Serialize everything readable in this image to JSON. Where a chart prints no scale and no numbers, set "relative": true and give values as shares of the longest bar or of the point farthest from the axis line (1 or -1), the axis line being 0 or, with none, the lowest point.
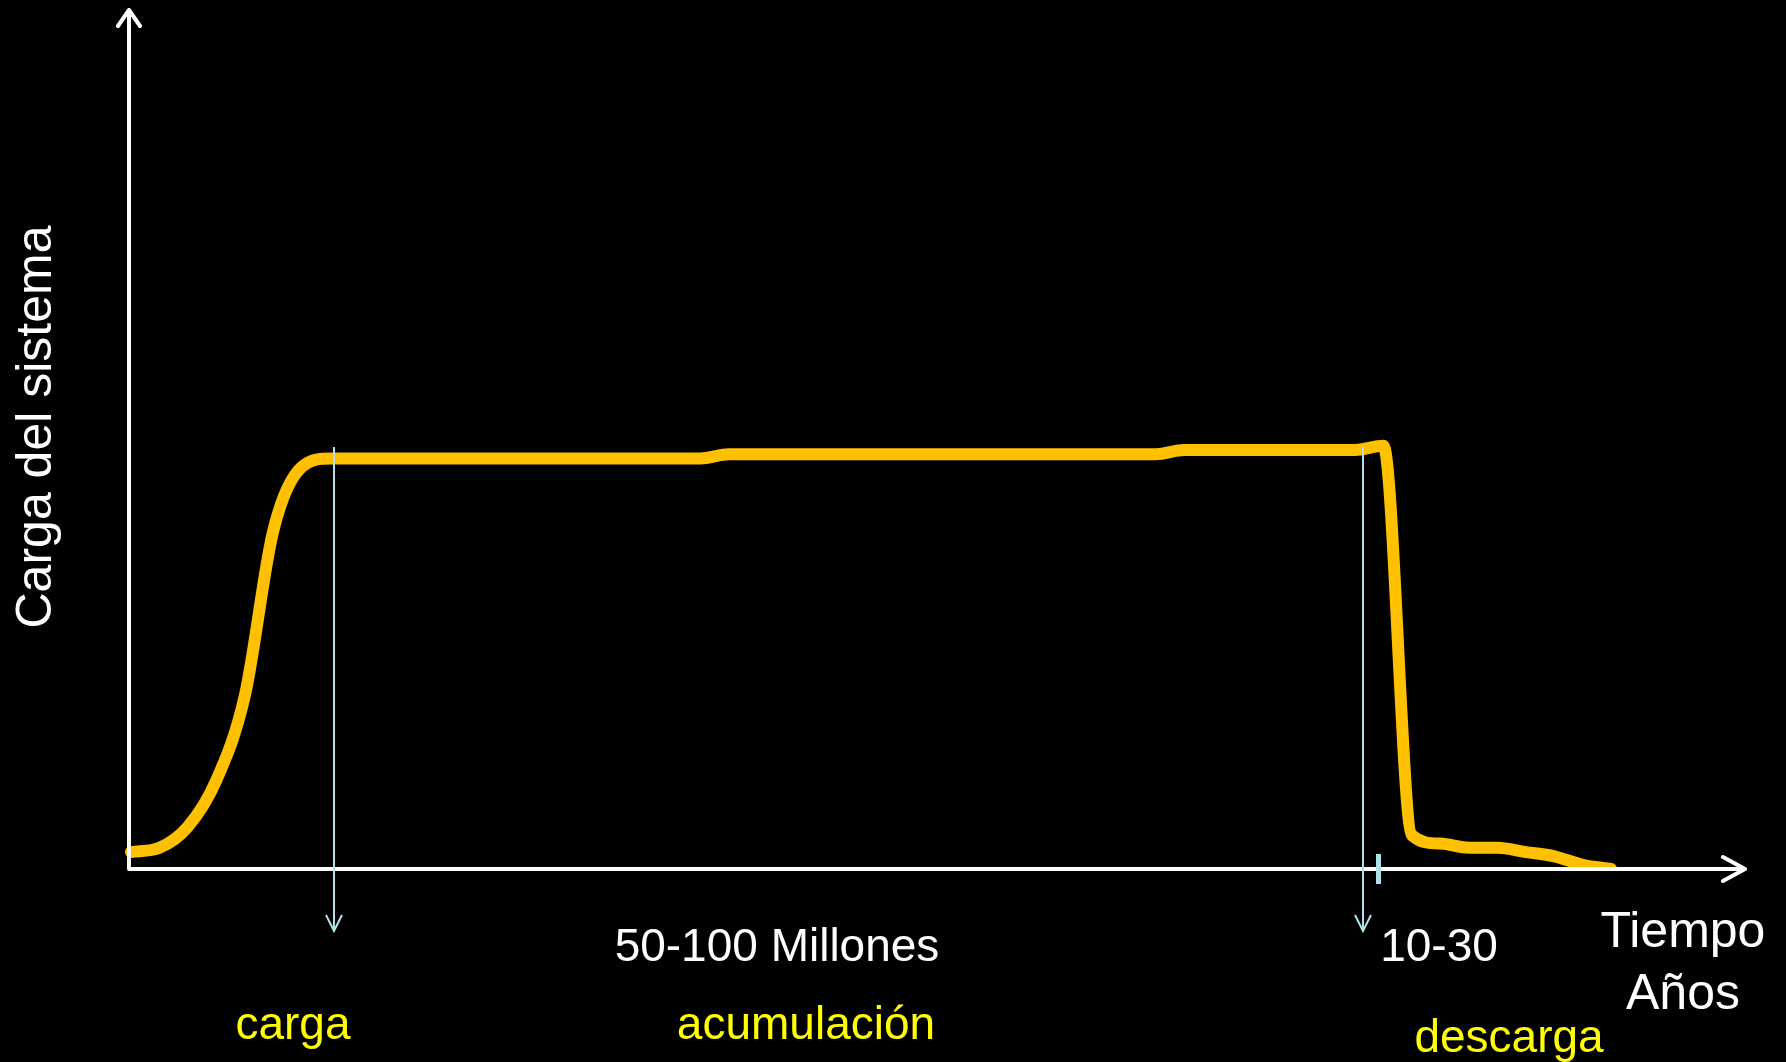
{
  "chart_data": {
    "type": "line",
    "relative": true,
    "marker": "none",
    "ylabel": "Carga del sistema",
    "xlabel": "Tiempo Años",
    "categories": [
      null,
      null,
      null,
      null,
      null,
      null,
      null,
      null,
      null,
      null,
      null,
      null,
      null,
      null,
      null,
      null,
      null,
      null,
      null,
      null,
      null,
      null,
      null,
      null,
      null,
      null,
      null,
      null,
      null,
      null,
      null,
      null,
      null,
      null,
      null,
      null,
      null,
      null,
      null,
      null,
      null,
      null,
      null,
      null,
      null,
      null,
      null,
      null,
      null,
      null,
      null,
      null,
      null,
      null,
      null,
      null,
      null
    ],
    "series": [
      {
        "color": "#ffc000",
        "values": [
          0.04,
          0.05,
          0.1,
          0.21,
          0.41,
          0.8,
          0.95,
          0.97,
          0.97,
          0.97,
          0.97,
          0.97,
          0.97,
          0.97,
          0.97,
          0.97,
          0.97,
          0.97,
          0.97,
          0.97,
          0.97,
          0.98,
          0.98,
          0.98,
          0.98,
          0.98,
          0.98,
          0.98,
          0.98,
          0.98,
          0.98,
          0.98,
          0.98,
          0.98,
          0.98,
          0.98,
          0.98,
          0.99,
          0.99,
          0.99,
          0.99,
          0.99,
          0.99,
          0.99,
          1.0,
          0.08,
          0.06,
          0.05,
          0.05,
          0.04,
          0.03,
          0.01,
          0.0,
          null,
          null,
          null,
          null
        ]
      }
    ],
    "annotations": [
      "50-100 Millones",
      "10-30",
      "carga",
      "acumulación",
      "descarga"
    ]
  }
}
